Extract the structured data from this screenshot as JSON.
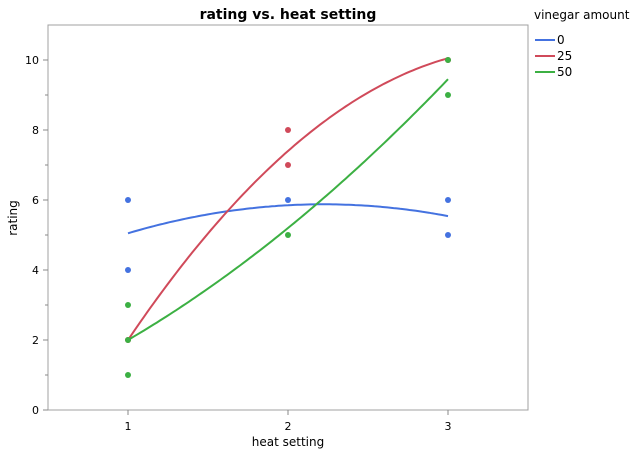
{
  "chart_data": {
    "type": "scatter",
    "title": "rating vs. heat setting",
    "xlabel": "heat setting",
    "ylabel": "rating",
    "xlim": [
      0.5,
      3.5
    ],
    "ylim": [
      0,
      11
    ],
    "xticks": [
      1,
      2,
      3
    ],
    "yticks": [
      0,
      2,
      4,
      6,
      8,
      10
    ],
    "grid": false,
    "legend": {
      "title": "vinegar amount",
      "placement": "right"
    },
    "series": [
      {
        "name": "0",
        "color": "#4472e0",
        "points": [
          [
            1,
            6
          ],
          [
            1,
            4
          ],
          [
            2,
            6
          ],
          [
            3,
            6
          ],
          [
            3,
            5
          ]
        ],
        "fit_at_x": [
          1,
          2,
          3
        ],
        "fit_values": [
          5.05,
          5.85,
          5.54
        ]
      },
      {
        "name": "25",
        "color": "#d04a5a",
        "points": [
          [
            1,
            2
          ],
          [
            2,
            8
          ],
          [
            2,
            7
          ],
          [
            3,
            10
          ]
        ],
        "fit_at_x": [
          1,
          2,
          3
        ],
        "fit_values": [
          2.0,
          7.4,
          10.05
        ]
      },
      {
        "name": "50",
        "color": "#3cb043",
        "points": [
          [
            1,
            3
          ],
          [
            1,
            1
          ],
          [
            1,
            2
          ],
          [
            2,
            5
          ],
          [
            3,
            10
          ],
          [
            3,
            9
          ]
        ],
        "fit_at_x": [
          1,
          2,
          3
        ],
        "fit_values": [
          2.0,
          5.2,
          9.45
        ]
      }
    ]
  }
}
